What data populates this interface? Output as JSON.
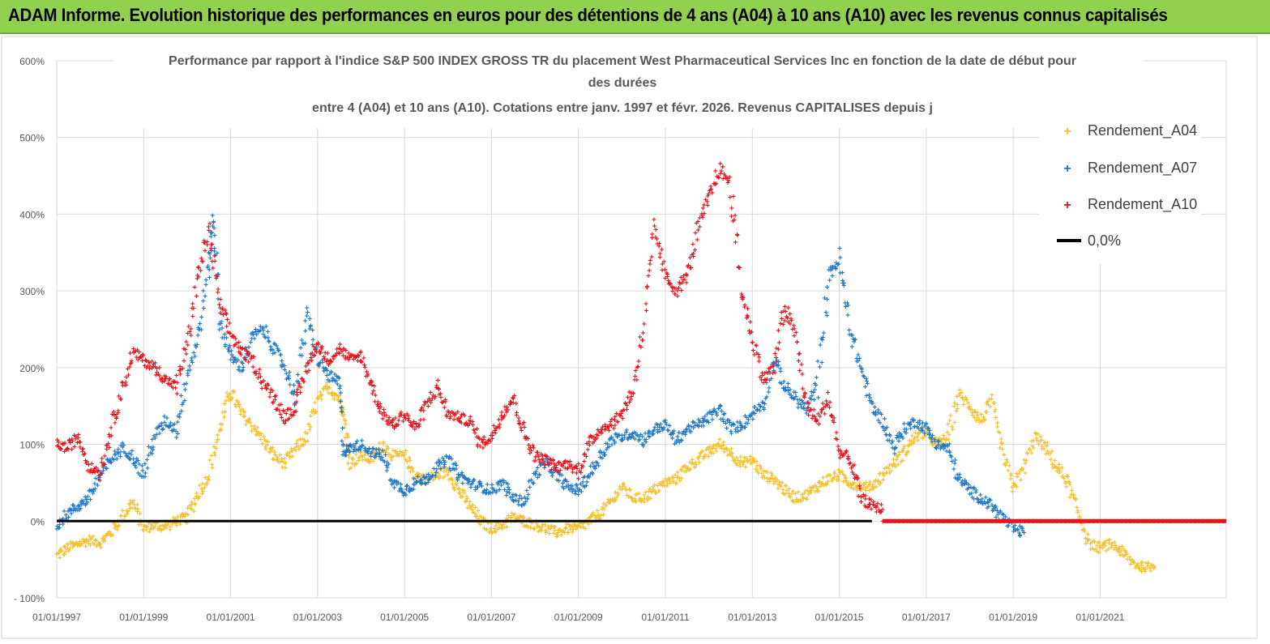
{
  "banner": {
    "title": "ADAM Informe. Evolution historique des performances en euros pour des détentions de 4 ans (A04) à 10 ans (A10) avec les revenus connus capitalisés"
  },
  "colors": {
    "banner_bg": "#92d050",
    "a04": "#f5c12e",
    "a07": "#1f78c8",
    "a10": "#e8141c",
    "zero": "#000000",
    "grid": "#d9d9d9",
    "title_text": "#555555"
  },
  "chart_data": {
    "type": "scatter",
    "title_lines": [
      "Performance par rapport à l'indice S&P 500 INDEX GROSS TR  du placement West Pharmaceutical Services Inc en fonction de la date de début pour",
      "des durées",
      "entre 4 (A04) et 10 ans (A10). Cotations entre janv. 1997 et févr. 2026. Revenus CAPITALISES depuis j"
    ],
    "xlabel": "",
    "ylabel": "",
    "xlim": [
      1997.0,
      2023.9
    ],
    "ylim": [
      -100,
      600
    ],
    "y_ticks": [
      -100,
      0,
      100,
      200,
      300,
      400,
      500,
      600
    ],
    "y_tick_labels": [
      "- 100%",
      "0%",
      "100%",
      "200%",
      "300%",
      "400%",
      "500%",
      "600%"
    ],
    "x_ticks": [
      1997,
      1999,
      2001,
      2003,
      2005,
      2007,
      2009,
      2011,
      2013,
      2015,
      2017,
      2019,
      2021
    ],
    "x_tick_labels": [
      "01/01/1997",
      "01/01/1999",
      "01/01/2001",
      "01/01/2003",
      "01/01/2005",
      "01/01/2007",
      "01/01/2009",
      "01/01/2011",
      "01/01/2013",
      "01/01/2015",
      "01/01/2017",
      "01/01/2019",
      "01/01/2021"
    ],
    "legend_position": "top-right",
    "series": [
      {
        "name": "Rendement_A04",
        "key": "a04",
        "marker": "+",
        "x": [
          1997.0,
          1997.25,
          1997.5,
          1997.75,
          1998.0,
          1998.25,
          1998.5,
          1998.75,
          1999.0,
          1999.25,
          1999.5,
          1999.75,
          2000.0,
          2000.25,
          2000.5,
          2000.75,
          2001.0,
          2001.25,
          2001.5,
          2001.75,
          2002.0,
          2002.25,
          2002.5,
          2002.75,
          2003.0,
          2003.25,
          2003.5,
          2003.6,
          2003.75,
          2004.0,
          2004.25,
          2004.5,
          2004.75,
          2005.0,
          2005.25,
          2005.5,
          2005.75,
          2006.0,
          2006.25,
          2006.5,
          2006.75,
          2007.0,
          2007.25,
          2007.5,
          2007.75,
          2008.0,
          2008.25,
          2008.5,
          2008.75,
          2009.0,
          2009.25,
          2009.5,
          2009.75,
          2010.0,
          2010.25,
          2010.5,
          2010.75,
          2011.0,
          2011.25,
          2011.5,
          2011.75,
          2012.0,
          2012.25,
          2012.5,
          2012.75,
          2013.0,
          2013.25,
          2013.5,
          2013.75,
          2014.0,
          2014.25,
          2014.5,
          2014.75,
          2015.0,
          2015.25,
          2015.5,
          2015.75,
          2016.0,
          2016.25,
          2016.5,
          2016.75,
          2017.0,
          2017.25,
          2017.5,
          2017.75,
          2018.0,
          2018.25,
          2018.5,
          2018.75,
          2019.0,
          2019.25,
          2019.5,
          2019.75,
          2020.0,
          2020.25,
          2020.5,
          2020.75,
          2021.0,
          2021.25,
          2021.5,
          2021.75,
          2022.0,
          2022.25
        ],
        "values": [
          -45,
          -35,
          -30,
          -25,
          -28,
          -15,
          5,
          25,
          -10,
          -5,
          -8,
          0,
          5,
          35,
          60,
          120,
          170,
          140,
          125,
          105,
          85,
          75,
          95,
          110,
          155,
          175,
          160,
          140,
          75,
          85,
          80,
          100,
          85,
          85,
          60,
          55,
          60,
          65,
          40,
          20,
          0,
          -10,
          -5,
          5,
          0,
          -5,
          -10,
          -15,
          -10,
          -10,
          0,
          10,
          25,
          45,
          30,
          30,
          40,
          50,
          55,
          70,
          80,
          90,
          100,
          90,
          75,
          80,
          60,
          55,
          40,
          30,
          35,
          45,
          55,
          60,
          50,
          45,
          45,
          60,
          75,
          90,
          110,
          115,
          100,
          110,
          165,
          150,
          130,
          155,
          90,
          45,
          70,
          110,
          95,
          70,
          50,
          10,
          -30,
          -35,
          -30,
          -40,
          -55,
          -60,
          -60
        ]
      },
      {
        "name": "Rendement_A07",
        "key": "a07",
        "marker": "+",
        "x": [
          1997.0,
          1997.25,
          1997.5,
          1997.75,
          1998.0,
          1998.25,
          1998.5,
          1998.75,
          1999.0,
          1999.25,
          1999.5,
          1999.75,
          2000.0,
          2000.25,
          2000.5,
          2000.6,
          2000.75,
          2001.0,
          2001.25,
          2001.5,
          2001.75,
          2002.0,
          2002.25,
          2002.5,
          2002.75,
          2003.0,
          2003.25,
          2003.5,
          2003.6,
          2003.75,
          2004.0,
          2004.25,
          2004.5,
          2004.75,
          2005.0,
          2005.25,
          2005.5,
          2005.75,
          2006.0,
          2006.25,
          2006.5,
          2006.75,
          2007.0,
          2007.25,
          2007.5,
          2007.75,
          2008.0,
          2008.25,
          2008.5,
          2008.75,
          2009.0,
          2009.25,
          2009.5,
          2009.75,
          2010.0,
          2010.25,
          2010.5,
          2010.75,
          2011.0,
          2011.25,
          2011.5,
          2011.75,
          2012.0,
          2012.25,
          2012.5,
          2012.75,
          2013.0,
          2013.25,
          2013.5,
          2013.75,
          2014.0,
          2014.25,
          2014.5,
          2014.75,
          2015.0,
          2015.25,
          2015.5,
          2015.75,
          2016.0,
          2016.25,
          2016.5,
          2016.75,
          2017.0,
          2017.25,
          2017.5,
          2017.75,
          2018.0,
          2018.25,
          2018.5,
          2018.75,
          2019.0,
          2019.25
        ],
        "values": [
          -5,
          10,
          20,
          30,
          60,
          80,
          95,
          85,
          60,
          110,
          130,
          120,
          190,
          240,
          330,
          400,
          260,
          215,
          200,
          240,
          250,
          225,
          200,
          160,
          270,
          210,
          190,
          180,
          90,
          95,
          100,
          90,
          85,
          50,
          40,
          50,
          55,
          70,
          80,
          60,
          50,
          45,
          40,
          50,
          30,
          25,
          60,
          75,
          60,
          45,
          40,
          60,
          85,
          105,
          110,
          115,
          105,
          120,
          125,
          105,
          120,
          125,
          135,
          145,
          120,
          125,
          140,
          155,
          210,
          175,
          160,
          145,
          180,
          320,
          340,
          250,
          200,
          150,
          130,
          95,
          120,
          130,
          120,
          100,
          95,
          55,
          40,
          30,
          20,
          5,
          -10,
          -15
        ]
      },
      {
        "name": "Rendement_A10",
        "key": "a10",
        "marker": "+",
        "x": [
          1997.0,
          1997.25,
          1997.5,
          1997.75,
          1998.0,
          1998.25,
          1998.5,
          1998.75,
          1999.0,
          1999.25,
          1999.5,
          1999.75,
          2000.0,
          2000.25,
          2000.5,
          2000.75,
          2001.0,
          2001.25,
          2001.5,
          2001.75,
          2002.0,
          2002.25,
          2002.5,
          2002.75,
          2003.0,
          2003.25,
          2003.5,
          2003.75,
          2004.0,
          2004.25,
          2004.5,
          2004.75,
          2005.0,
          2005.25,
          2005.5,
          2005.75,
          2006.0,
          2006.25,
          2006.5,
          2006.75,
          2007.0,
          2007.25,
          2007.5,
          2007.75,
          2008.0,
          2008.25,
          2008.5,
          2008.75,
          2009.0,
          2009.25,
          2009.5,
          2009.75,
          2010.0,
          2010.25,
          2010.5,
          2010.75,
          2011.0,
          2011.25,
          2011.5,
          2011.75,
          2012.0,
          2012.25,
          2012.5,
          2012.75,
          2013.0,
          2013.25,
          2013.5,
          2013.75,
          2014.0,
          2014.25,
          2014.5,
          2014.75,
          2015.0,
          2015.25,
          2015.5,
          2015.75,
          2016.0
        ],
        "values": [
          100,
          95,
          110,
          70,
          65,
          120,
          170,
          220,
          210,
          200,
          185,
          175,
          230,
          320,
          380,
          280,
          245,
          220,
          210,
          180,
          160,
          135,
          150,
          200,
          230,
          210,
          225,
          210,
          215,
          175,
          140,
          125,
          140,
          120,
          150,
          175,
          140,
          135,
          130,
          100,
          110,
          140,
          160,
          115,
          85,
          80,
          70,
          75,
          65,
          100,
          120,
          125,
          140,
          170,
          250,
          380,
          320,
          300,
          320,
          380,
          420,
          460,
          440,
          300,
          240,
          185,
          200,
          280,
          240,
          150,
          130,
          160,
          90,
          80,
          30,
          20,
          15
        ]
      },
      {
        "name": "0,0%",
        "key": "zero",
        "type": "line",
        "x": [
          1997.0,
          2015.75
        ],
        "values": [
          0,
          0
        ]
      }
    ],
    "flat_segment": {
      "series": "Rendement_A10",
      "x_start": 2016.0,
      "x_end": 2023.9,
      "value": 0
    }
  }
}
